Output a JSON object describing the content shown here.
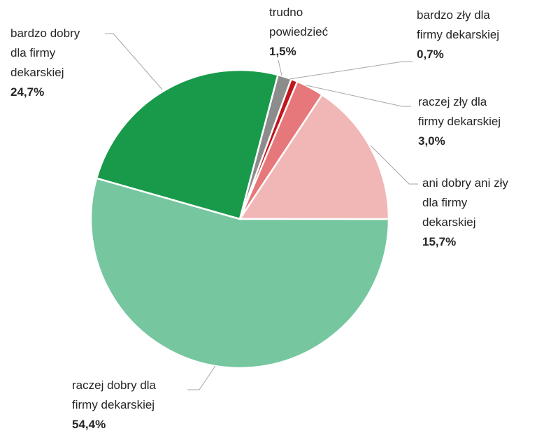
{
  "chart_data": {
    "type": "pie",
    "categories": [
      "trudno\npowiedzieć",
      "bardzo zły dla\nfirmy dekarskiej",
      "raczej zły dla\nfirmy dekarskiej",
      "ani dobry ani zły\ndla firmy\ndekarskiej",
      "raczej dobry dla\nfirmy dekarskiej",
      "bardzo dobry\ndla firmy\ndekarskiej"
    ],
    "values": [
      1.5,
      0.7,
      3.0,
      15.7,
      54.4,
      24.7
    ],
    "value_labels": [
      "1,5%",
      "0,7%",
      "3,0%",
      "15,7%",
      "54,4%",
      "24,7%"
    ],
    "colors": [
      "#8c8c8c",
      "#c0161c",
      "#e6777a",
      "#f0b7b6",
      "#76c6a0",
      "#189a4a"
    ]
  }
}
